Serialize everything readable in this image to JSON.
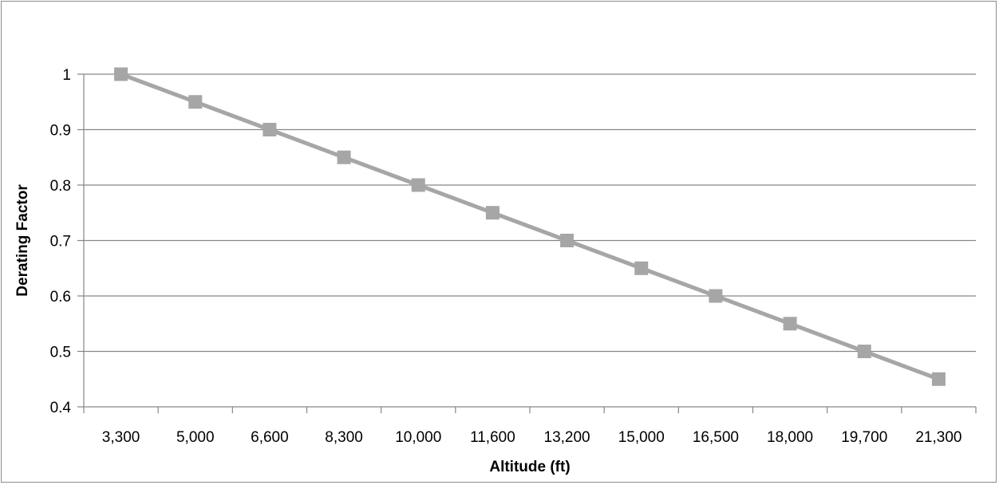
{
  "chart_data": {
    "type": "line",
    "title": "",
    "xlabel": "Altitude (ft)",
    "ylabel": "Derating Factor",
    "categories": [
      "3,300",
      "5,000",
      "6,600",
      "8,300",
      "10,000",
      "11,600",
      "13,200",
      "15,000",
      "16,500",
      "18,000",
      "19,700",
      "21,300"
    ],
    "series": [
      {
        "values": [
          1,
          0.95,
          0.9,
          0.85,
          0.8,
          0.75,
          0.7,
          0.65,
          0.6,
          0.55,
          0.5,
          0.45
        ]
      }
    ],
    "ylim": [
      0.4,
      1
    ],
    "yticks": [
      "0.4",
      "0.5",
      "0.6",
      "0.7",
      "0.8",
      "0.9",
      "1"
    ],
    "grid": true,
    "legend": "none",
    "colors": {
      "series": "#a6a6a6",
      "grid": "#868686",
      "axis": "#868686"
    }
  }
}
